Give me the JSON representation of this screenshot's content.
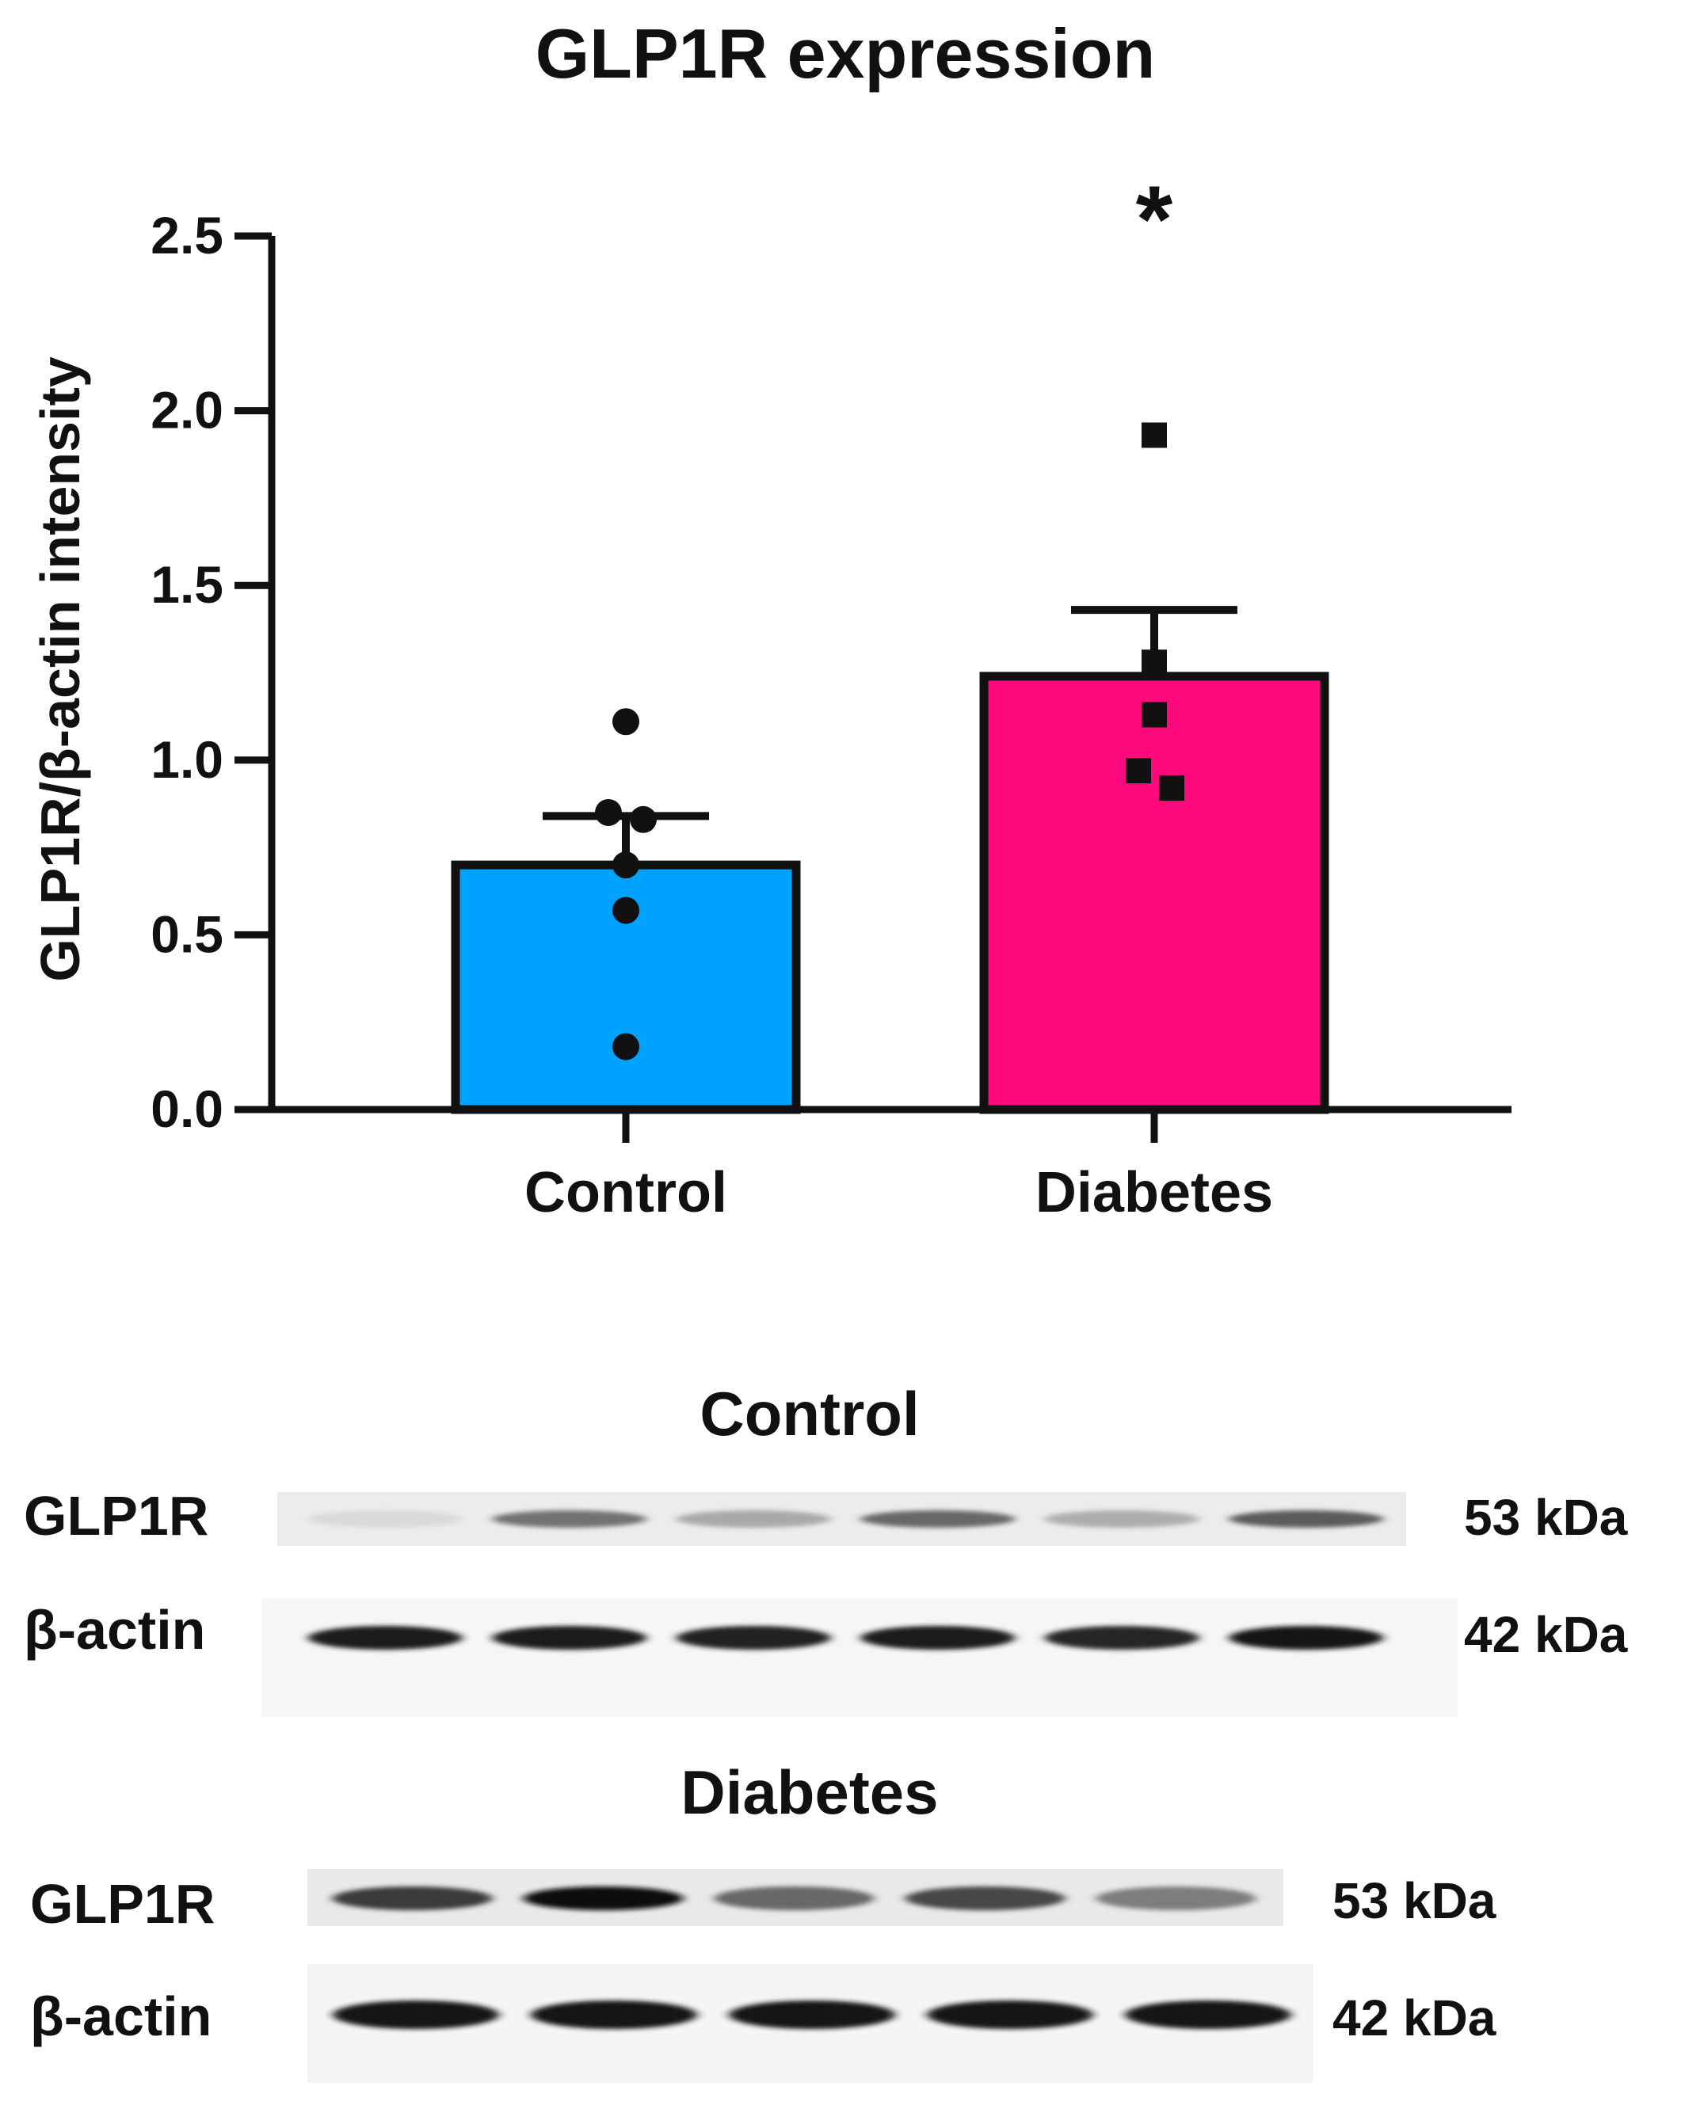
{
  "chart_data": {
    "type": "bar",
    "title": "GLP1R expression",
    "ylabel": "GLP1R/β-actin intensity",
    "xlabel": "",
    "ylim": [
      0,
      2.5
    ],
    "yticks": [
      "0.0",
      "0.5",
      "1.0",
      "1.5",
      "2.0",
      "2.5"
    ],
    "categories": [
      "Control",
      "Diabetes"
    ],
    "values": [
      0.7,
      1.24
    ],
    "sem": [
      0.14,
      0.19
    ],
    "colors": [
      "#00A2FF",
      "#FF0A7C"
    ],
    "points": [
      {
        "group": "Control",
        "marker": "circle",
        "values": [
          1.11,
          0.85,
          0.83,
          0.7,
          0.57,
          0.18
        ]
      },
      {
        "group": "Diabetes",
        "marker": "square",
        "values": [
          1.93,
          1.28,
          1.13,
          0.97,
          0.92
        ]
      }
    ],
    "significance": [
      "",
      "*"
    ],
    "grid": false,
    "legend": "none"
  },
  "blots": [
    {
      "title": "Control",
      "rows": [
        {
          "label": "GLP1R",
          "size": "53 kDa",
          "band_intensity": [
            0.08,
            0.55,
            0.3,
            0.6,
            0.28,
            0.65
          ]
        },
        {
          "label": "β-actin",
          "size": "42 kDa",
          "band_intensity": [
            0.95,
            0.95,
            0.92,
            0.95,
            0.9,
            0.98
          ]
        }
      ]
    },
    {
      "title": "Diabetes",
      "rows": [
        {
          "label": "GLP1R",
          "size": "53 kDa",
          "band_intensity": [
            0.8,
            1.0,
            0.6,
            0.75,
            0.5
          ]
        },
        {
          "label": "β-actin",
          "size": "42 kDa",
          "band_intensity": [
            0.98,
            0.98,
            0.96,
            0.98,
            0.97
          ]
        }
      ]
    }
  ]
}
